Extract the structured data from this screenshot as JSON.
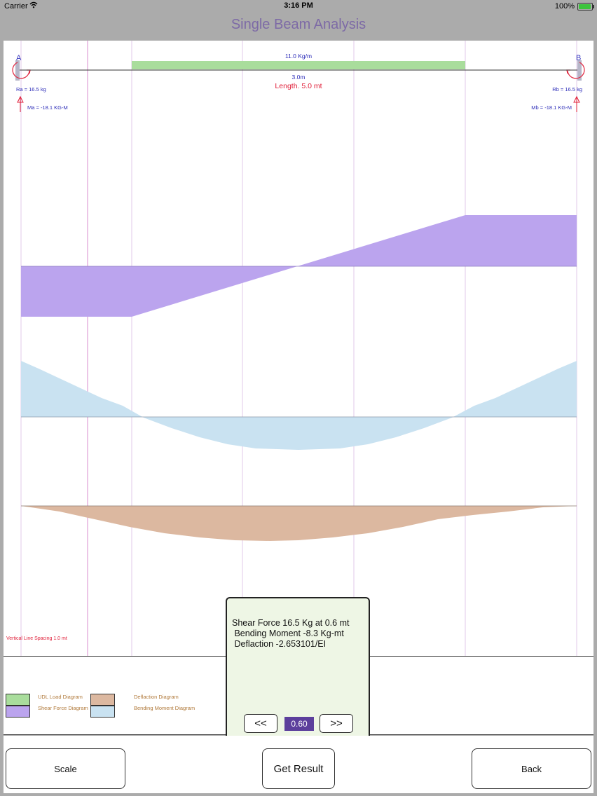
{
  "status": {
    "carrier": "Carrier",
    "time": "3:16 PM",
    "battery": "100%"
  },
  "title": "Single Beam Analysis",
  "beam": {
    "label_a": "A",
    "label_b": "B",
    "load_label": "11.0 Kg/m",
    "load_length": "3.0m",
    "length_label": "Length. 5.0 mt",
    "ra": "Ra = 16.5 kg",
    "rb": "Rb = 16.5 kg",
    "ma": "Ma = -18.1 KG-M",
    "mb": "Mb = -18.1 KG-M",
    "spacing_note": "Vertical Line Spacing 1.0 mt"
  },
  "colors": {
    "udl": "#a9dd9c",
    "shear": "#bba4ee",
    "moment": "#c9e2f1",
    "deflection": "#dcb8a0"
  },
  "legend": {
    "udl": "UDL Load Diagram",
    "shear": "Shear Force Diagram",
    "deflection": "Deflaction Diagram",
    "moment": "Bending Moment Diagram"
  },
  "info": {
    "line1": "Shear Force 16.5 Kg at 0.6 mt",
    "line2": " Bending Moment -8.3 Kg-mt",
    "line3": " Deflaction -2.653101/EI",
    "prev": "<<",
    "next": ">>",
    "position": "0.60"
  },
  "buttons": {
    "scale": "Scale",
    "get_result": "Get Result",
    "back": "Back"
  }
}
